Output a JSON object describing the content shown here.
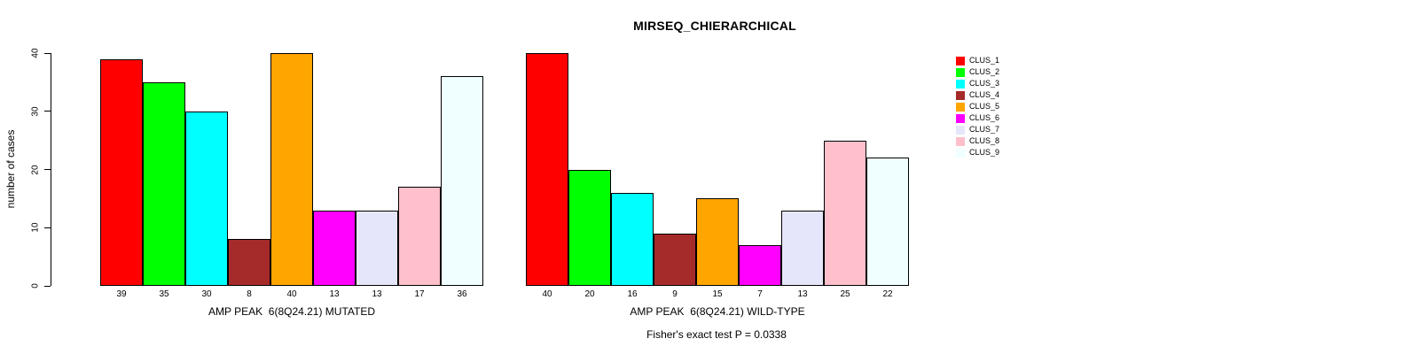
{
  "title": "MIRSEQ_CHIERARCHICAL",
  "ylabel": "number of cases",
  "footer": "Fisher's exact test P = 0.0338",
  "chart_data": [
    {
      "type": "bar",
      "xlabel": "AMP PEAK  6(8Q24.21) MUTATED",
      "ylabel": "number of cases",
      "categories": [
        "CLUS_1",
        "CLUS_2",
        "CLUS_3",
        "CLUS_4",
        "CLUS_5",
        "CLUS_6",
        "CLUS_7",
        "CLUS_8",
        "CLUS_9"
      ],
      "values": [
        39,
        35,
        30,
        8,
        40,
        13,
        13,
        17,
        36
      ],
      "colors": [
        "#FF0000",
        "#00FF00",
        "#00FFFF",
        "#A52A2A",
        "#FFA500",
        "#FF00FF",
        "#E6E6FA",
        "#FFC0CB",
        "#F0FFFF"
      ],
      "ylim": [
        0,
        40
      ],
      "yticks": [
        0,
        10,
        20,
        30,
        40
      ],
      "grid": false,
      "y_axis_shown": true
    },
    {
      "type": "bar",
      "xlabel": "AMP PEAK  6(8Q24.21) WILD-TYPE",
      "ylabel": "number of cases",
      "categories": [
        "CLUS_1",
        "CLUS_2",
        "CLUS_3",
        "CLUS_4",
        "CLUS_5",
        "CLUS_6",
        "CLUS_7",
        "CLUS_8",
        "CLUS_9"
      ],
      "values": [
        40,
        20,
        16,
        9,
        15,
        7,
        13,
        25,
        22
      ],
      "colors": [
        "#FF0000",
        "#00FF00",
        "#00FFFF",
        "#A52A2A",
        "#FFA500",
        "#FF00FF",
        "#E6E6FA",
        "#FFC0CB",
        "#F0FFFF"
      ],
      "ylim": [
        0,
        40
      ],
      "yticks": [
        0,
        10,
        20,
        30,
        40
      ],
      "grid": false,
      "y_axis_shown": false
    }
  ],
  "legend": {
    "position": "right",
    "entries": [
      {
        "label": "CLUS_1",
        "color": "#FF0000"
      },
      {
        "label": "CLUS_2",
        "color": "#00FF00"
      },
      {
        "label": "CLUS_3",
        "color": "#00FFFF"
      },
      {
        "label": "CLUS_4",
        "color": "#A52A2A"
      },
      {
        "label": "CLUS_5",
        "color": "#FFA500"
      },
      {
        "label": "CLUS_6",
        "color": "#FF00FF"
      },
      {
        "label": "CLUS_7",
        "color": "#E6E6FA"
      },
      {
        "label": "CLUS_8",
        "color": "#FFC0CB"
      },
      {
        "label": "CLUS_9",
        "color": "#F0FFFF"
      }
    ]
  }
}
